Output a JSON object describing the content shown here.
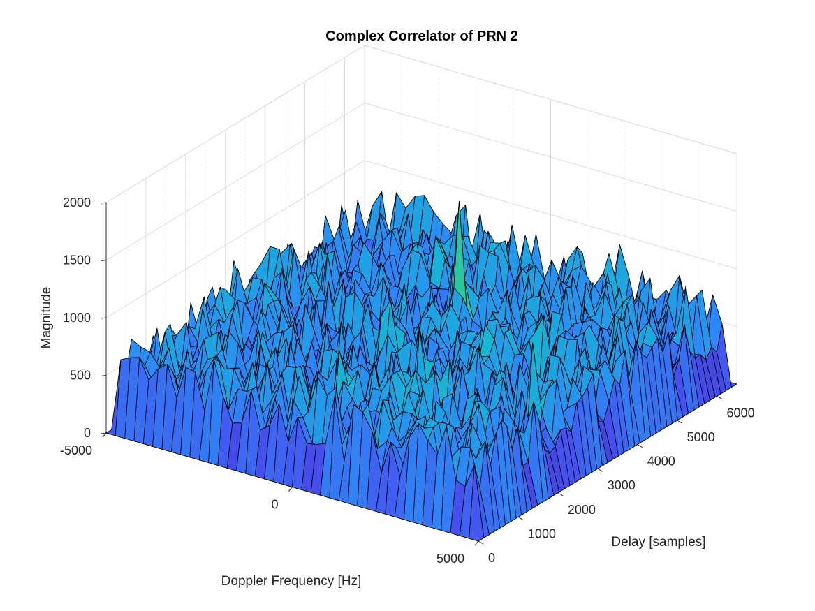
{
  "chart_data": {
    "type": "surface",
    "title": "Complex Correlator of PRN 2",
    "xlabel": "Doppler Frequency [Hz]",
    "ylabel": "Delay [samples]",
    "zlabel": "Magnitude",
    "xlim": [
      -5000,
      5000
    ],
    "ylim": [
      0,
      6500
    ],
    "zlim": [
      0,
      2000
    ],
    "x_ticks": [
      -5000,
      0,
      5000
    ],
    "y_ticks": [
      0,
      1000,
      2000,
      3000,
      4000,
      5000,
      6000
    ],
    "z_ticks": [
      0,
      500,
      1000,
      1500,
      2000
    ],
    "x_tick_labels": [
      "-5000",
      "0",
      "5000"
    ],
    "y_tick_labels": [
      "0",
      "1000",
      "2000",
      "3000",
      "4000",
      "5000",
      "6000"
    ],
    "z_tick_labels": [
      "0",
      "500",
      "1000",
      "1500",
      "2000"
    ],
    "grid": true,
    "colormap": "parula",
    "noise_floor_range": [
      300,
      900
    ],
    "peak": {
      "doppler": 0,
      "delay": 4200,
      "magnitude": 1600
    },
    "colors": {
      "low": "#3e26a8",
      "mid": "#2e87f7",
      "high": "#f9fb15"
    }
  }
}
